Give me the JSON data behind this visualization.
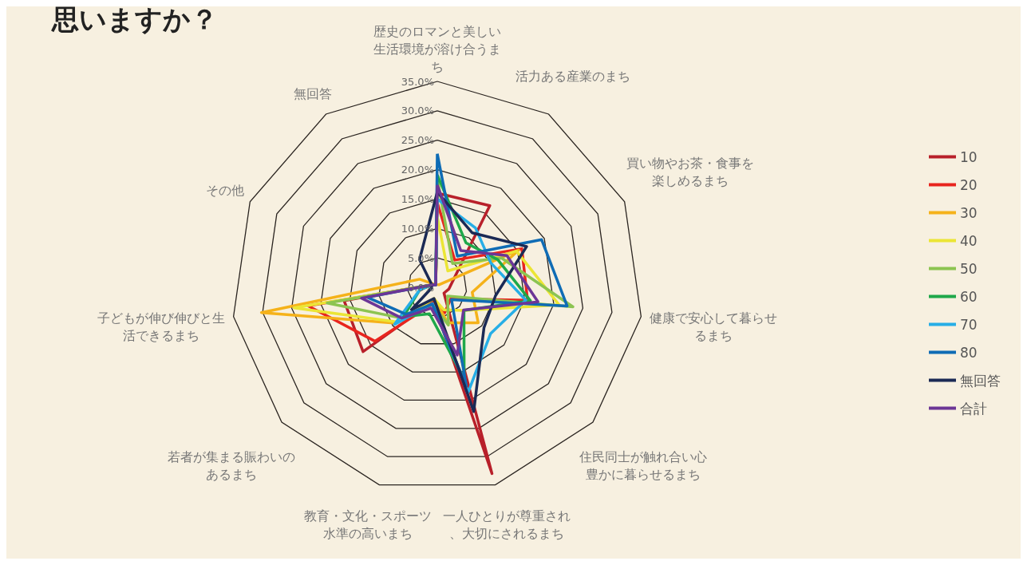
{
  "chart_data": {
    "type": "radar",
    "title": "思いますか？",
    "categories": [
      "歴史のロマンと美しい生活環境が溶け合うまち",
      "活力ある産業のまち",
      "買い物やお茶・食事を楽しめるまち",
      "健康で安心して暮らせるまち",
      "住民同士が触れ合い心豊かに暮らせるまち",
      "一人ひとりが尊重され、大切にされるまち",
      "教育・文化・スポーツ水準の高いまち",
      "若者が集まる賑わいのあるまち",
      "子どもが伸び伸びと生活できるまち",
      "その他",
      "無回答"
    ],
    "ylim": [
      0,
      35
    ],
    "yticks": [
      {
        "value": 0,
        "label": "0.0%"
      },
      {
        "value": 5,
        "label": "5.0%"
      },
      {
        "value": 10,
        "label": "10.0%"
      },
      {
        "value": 15,
        "label": "15.0%"
      },
      {
        "value": 20,
        "label": "20.0%"
      },
      {
        "value": 25,
        "label": "25.0%"
      },
      {
        "value": 30,
        "label": "30.0%"
      },
      {
        "value": 35,
        "label": "35.0%"
      }
    ],
    "legend": "right",
    "marker": "none",
    "series": [
      {
        "name": "10",
        "color": "#b8202a",
        "values": [
          16,
          16.5,
          3,
          2,
          1.5,
          33,
          2.5,
          16.7,
          16,
          1,
          0.5
        ]
      },
      {
        "name": "20",
        "color": "#e8251e",
        "values": [
          14.4,
          5.5,
          15.8,
          15.5,
          3,
          4.5,
          3,
          14,
          22.2,
          1,
          0.5
        ]
      },
      {
        "name": "30",
        "color": "#f5b21a",
        "values": [
          0.5,
          0.5,
          15.2,
          6,
          9.2,
          6.3,
          2,
          9.3,
          30.2,
          3.3,
          0.5
        ]
      },
      {
        "name": "40",
        "color": "#ebe535",
        "values": [
          12,
          3.3,
          14.8,
          20.9,
          6,
          4,
          2,
          9,
          24.6,
          1,
          0.5
        ]
      },
      {
        "name": "50",
        "color": "#8cc451",
        "values": [
          18.5,
          4.8,
          12,
          23.3,
          2.3,
          6.7,
          3,
          8,
          18.9,
          1,
          0.5
        ]
      },
      {
        "name": "60",
        "color": "#1fa84a",
        "values": [
          19.1,
          9,
          11.3,
          16,
          6,
          16.2,
          4.7,
          7.6,
          3,
          1,
          0.5
        ]
      },
      {
        "name": "70",
        "color": "#27aee6",
        "values": [
          15,
          12,
          10,
          15.2,
          12,
          18.6,
          2.9,
          9.6,
          3,
          1,
          0.5
        ]
      },
      {
        "name": "80",
        "color": "#0f6cb5",
        "values": [
          22.7,
          6.3,
          19.5,
          22.3,
          3.2,
          17.5,
          3,
          7,
          12,
          1,
          0.5
        ]
      },
      {
        "name": "無回答",
        "color": "#1b2a55",
        "values": [
          16.2,
          11,
          16.7,
          10,
          10.5,
          22,
          2,
          5.8,
          1,
          1,
          5.6
        ]
      },
      {
        "name": "合計",
        "color": "#6c3696",
        "values": [
          17.4,
          7.4,
          13,
          17.3,
          5.9,
          12,
          3.7,
          8,
          13,
          1,
          0.5
        ]
      }
    ]
  }
}
